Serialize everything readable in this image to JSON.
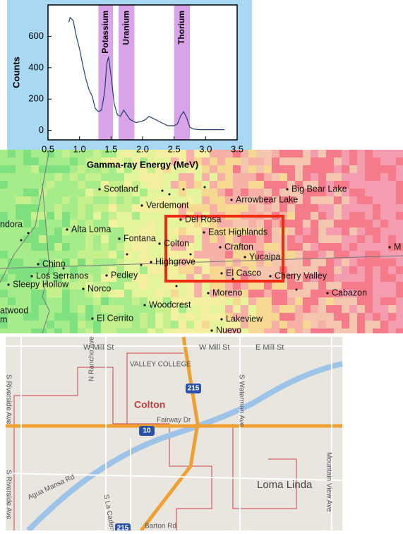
{
  "chart_data": {
    "type": "line",
    "x_label": "Gamma-ray Energy (MeV)",
    "y_label": "Counts",
    "xlim": [
      0.5,
      3.5
    ],
    "xticks": [
      0.5,
      {
        "value": 1,
        "label": "1.0"
      },
      1.5,
      {
        "value": 2,
        "label": "2.0"
      },
      2.5,
      {
        "value": 3,
        "label": "3.0"
      },
      3.5
    ],
    "ylim": [
      -60,
      800
    ],
    "yticks": [
      0,
      200,
      400,
      600
    ],
    "regions": [
      {
        "label": "Potassium",
        "start": 1.3,
        "end": 1.53
      },
      {
        "label": "Uranium",
        "start": 1.62,
        "end": 1.87
      },
      {
        "label": "Thorium",
        "start": 2.5,
        "end": 2.75
      }
    ],
    "region_color": "#d9a3ea",
    "x": [
      0.83,
      0.85,
      0.9,
      0.95,
      1.0,
      1.05,
      1.1,
      1.15,
      1.2,
      1.25,
      1.3,
      1.35,
      1.4,
      1.43,
      1.46,
      1.5,
      1.55,
      1.6,
      1.65,
      1.7,
      1.75,
      1.8,
      1.85,
      1.9,
      2.0,
      2.05,
      2.1,
      2.15,
      2.2,
      2.3,
      2.4,
      2.5,
      2.55,
      2.6,
      2.65,
      2.7,
      2.75,
      2.8,
      2.9,
      3.0,
      3.1,
      3.2,
      3.3
    ],
    "series": [
      {
        "color": "#22406e",
        "values": [
          690,
          720,
          700,
          600,
          520,
          420,
          330,
          260,
          220,
          140,
          120,
          130,
          250,
          420,
          470,
          350,
          170,
          100,
          90,
          130,
          100,
          70,
          60,
          50,
          60,
          70,
          90,
          80,
          70,
          50,
          30,
          30,
          40,
          90,
          120,
          80,
          20,
          10,
          5,
          5,
          5,
          5,
          5
        ]
      }
    ]
  },
  "heat_map": {
    "places": [
      "Scotland",
      "Verdemont",
      "Arrowbear Lake",
      "Big Bear Lake",
      "ndora",
      "Alta Loma",
      "Fontana",
      "Del Rosa",
      "East Highlands",
      "Colton",
      "Crafton",
      "Yucaipa",
      "M",
      "Chino",
      "Highgrove",
      "Los Serranos",
      "Pedley",
      "El Casco",
      "Cherry Valley",
      "Sleepy Hollow",
      "Norco",
      "Moreno",
      "Cabazon",
      "atwood",
      "m",
      "El Cerrito",
      "Woodcrest",
      "Lakeview",
      "Nuevo"
    ]
  },
  "street_map": {
    "labels": [
      "W Mill St",
      "W Mill St",
      "E Mill St",
      "S Waterman Ave",
      "S Riverside Ave",
      "N Rancho Ave",
      "VALLEY COLLEGE",
      "Colton",
      "Fairway Dr",
      "S Riverside Ave",
      "Agua Mansa Rd",
      "S La Cadena Dr",
      "Barton Rd",
      "Loma Linda",
      "Mountain View Ave"
    ],
    "shields": [
      "215",
      "10",
      "215"
    ]
  }
}
